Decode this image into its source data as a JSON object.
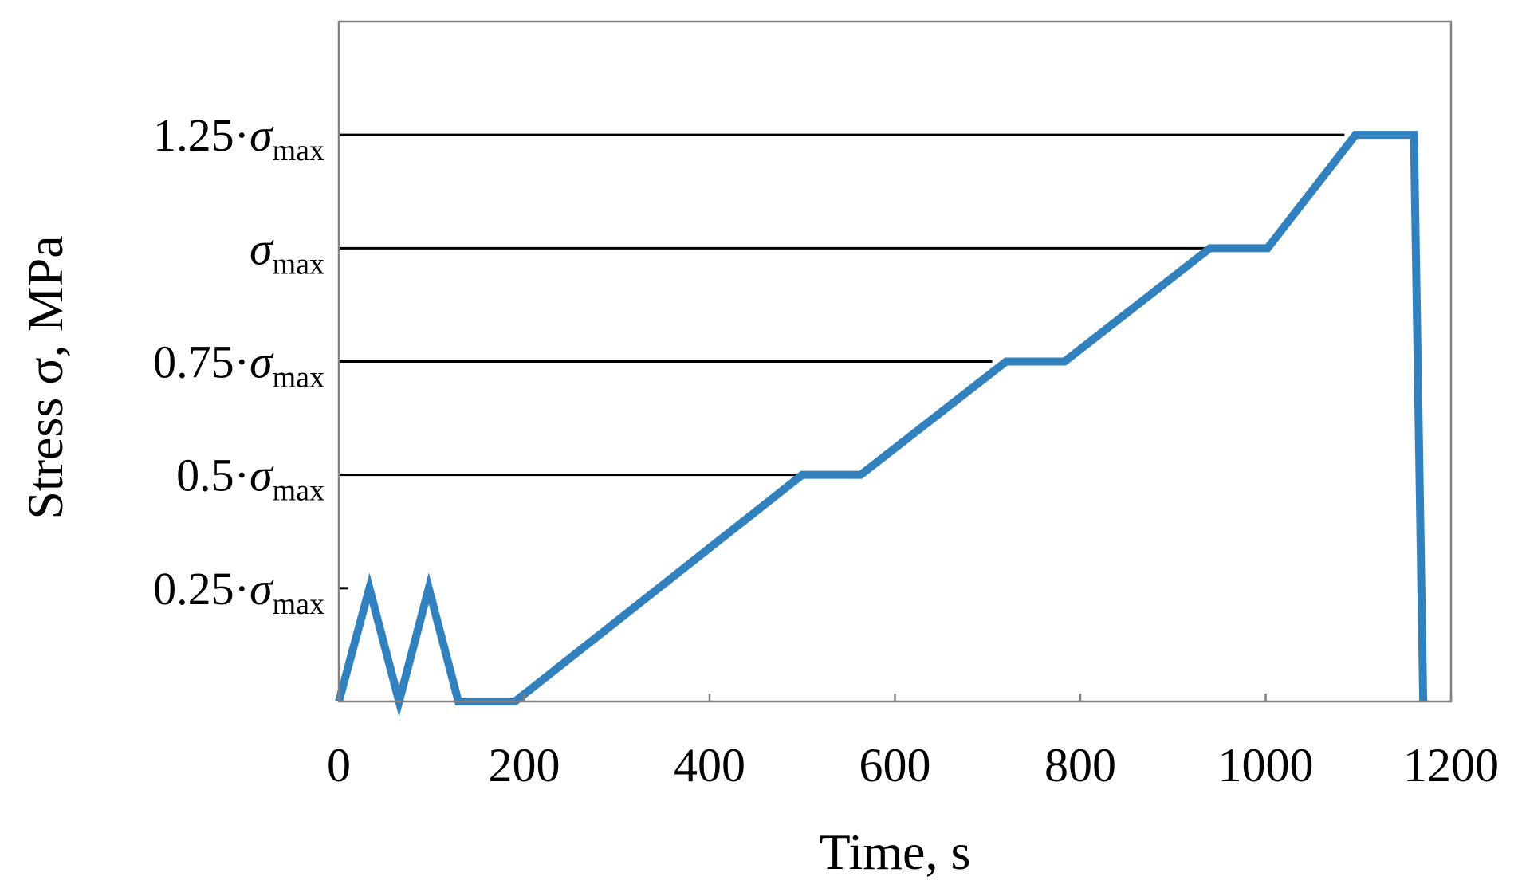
{
  "chart_data": {
    "type": "line",
    "xlabel": "Time, s",
    "ylabel": "Stress σ, MPa",
    "xlim": [
      0,
      1200
    ],
    "ylim": [
      0,
      1.5
    ],
    "x_ticks": [
      "0",
      "200",
      "400",
      "600",
      "800",
      "1000",
      "1200"
    ],
    "x_tick_values": [
      0,
      200,
      400,
      600,
      800,
      1000,
      1200
    ],
    "y_levels": [
      {
        "label_prefix": "0.25·",
        "symbol": "σ",
        "subscript": "max",
        "value": 0.25,
        "line_end_x": 10
      },
      {
        "label_prefix": "0.5·",
        "symbol": "σ",
        "subscript": "max",
        "value": 0.5,
        "line_end_x": 500
      },
      {
        "label_prefix": "0.75·",
        "symbol": "σ",
        "subscript": "max",
        "value": 0.75,
        "line_end_x": 705
      },
      {
        "label_prefix": "",
        "symbol": "σ",
        "subscript": "max",
        "value": 1.0,
        "line_end_x": 935
      },
      {
        "label_prefix": "1.25·",
        "symbol": "σ",
        "subscript": "max",
        "value": 1.25,
        "line_end_x": 1085
      }
    ],
    "series": [
      {
        "color": "#3181bf",
        "x": [
          0,
          33,
          65,
          97,
          129,
          190,
          500,
          563,
          720,
          783,
          940,
          1002,
          1097,
          1160,
          1170
        ],
        "y": [
          0,
          0.25,
          0,
          0.25,
          0,
          0,
          0.5,
          0.5,
          0.75,
          0.75,
          1.0,
          1.0,
          1.25,
          1.25,
          0
        ]
      }
    ],
    "grid": false
  }
}
